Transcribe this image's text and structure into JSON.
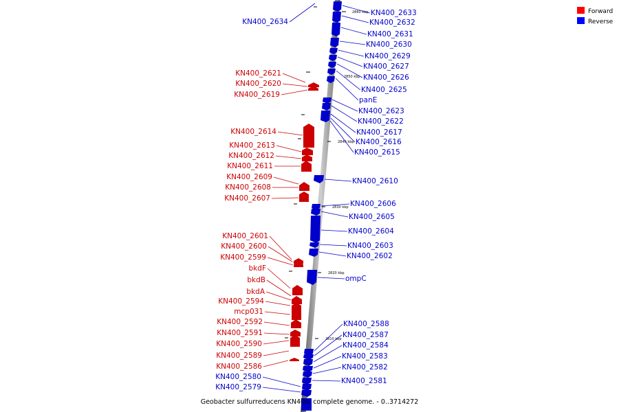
{
  "caption": "Geobacter sulfurreducens KN400, complete genome. - 0..3714272",
  "legend": {
    "forward_label": "Forward",
    "reverse_label": "Reverse",
    "forward_color": "#ff0000",
    "reverse_color": "#0000ff"
  },
  "ticks": [
    "2860 kbp",
    "2850 kbp",
    "2840 kbp",
    "2830 kbp",
    "2820 kbp",
    "2810 kbp"
  ],
  "forward_genes": [
    "KN400_2621",
    "KN400_2620",
    "KN400_2619",
    "KN400_2614",
    "KN400_2613",
    "KN400_2612",
    "KN400_2611",
    "KN400_2609",
    "KN400_2608",
    "KN400_2607",
    "KN400_2601",
    "KN400_2600",
    "KN400_2599",
    "bkdF",
    "bkdB",
    "bkdA",
    "KN400_2594",
    "mcp031",
    "KN400_2592",
    "KN400_2591",
    "KN400_2590",
    "KN400_2589",
    "KN400_2586"
  ],
  "reverse_genes_left": [
    "KN400_2634",
    "KN400_2580",
    "KN400_2579"
  ],
  "reverse_genes_right": [
    "KN400_2633",
    "KN400_2632",
    "KN400_2631",
    "KN400_2630",
    "KN400_2629",
    "KN400_2627",
    "KN400_2626",
    "KN400_2625",
    "panE",
    "KN400_2623",
    "KN400_2622",
    "KN400_2617",
    "KN400_2616",
    "KN400_2615",
    "KN400_2610",
    "KN400_2606",
    "KN400_2605",
    "KN400_2604",
    "KN400_2603",
    "KN400_2602",
    "ompC",
    "KN400_2588",
    "KN400_2587",
    "KN400_2584",
    "KN400_2583",
    "KN400_2582",
    "KN400_2581"
  ]
}
